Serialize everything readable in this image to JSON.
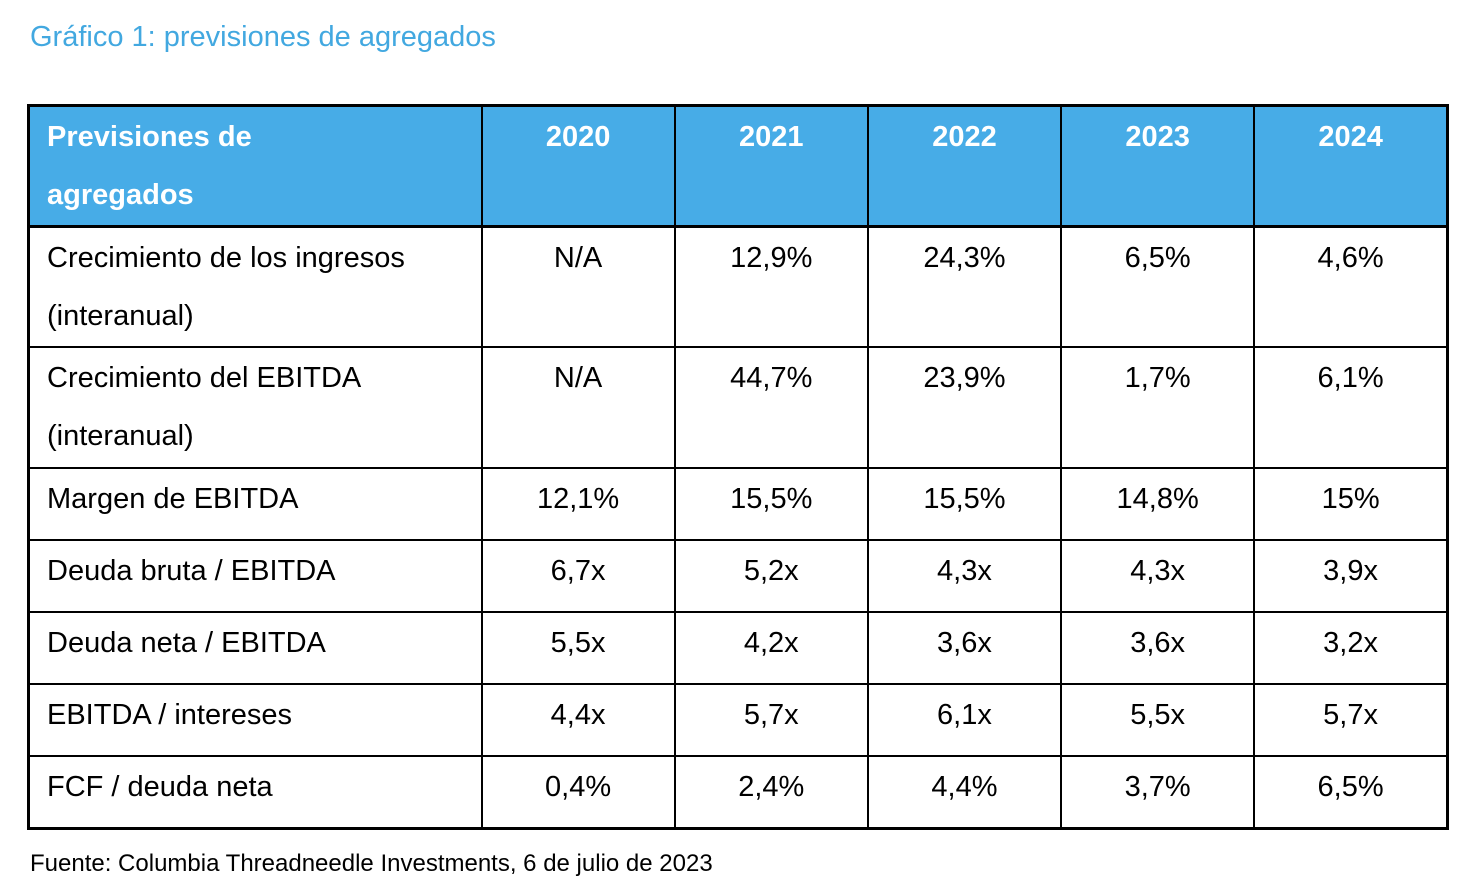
{
  "title": "Gráfico 1: previsiones de agregados",
  "source": "Fuente: Columbia Threadneedle Investments, 6 de julio de 2023",
  "colors": {
    "title_text": "#42A8E0",
    "header_bg": "#47ACE7",
    "header_text": "#FFFFFF",
    "border": "#000000",
    "body_text": "#000000",
    "background": "#FFFFFF"
  },
  "chart_data": {
    "type": "table",
    "title": "Gráfico 1: previsiones de agregados",
    "corner_label": "Previsiones de agregados",
    "columns": [
      "2020",
      "2021",
      "2022",
      "2023",
      "2024"
    ],
    "rows": [
      {
        "label": "Crecimiento de los ingresos (interanual)",
        "values": [
          "N/A",
          "12,9%",
          "24,3%",
          "6,5%",
          "4,6%"
        ]
      },
      {
        "label": "Crecimiento del EBITDA (interanual)",
        "values": [
          "N/A",
          "44,7%",
          "23,9%",
          "1,7%",
          "6,1%"
        ]
      },
      {
        "label": "Margen de EBITDA",
        "values": [
          "12,1%",
          "15,5%",
          "15,5%",
          "14,8%",
          "15%"
        ]
      },
      {
        "label": "Deuda bruta / EBITDA",
        "values": [
          "6,7x",
          "5,2x",
          "4,3x",
          "4,3x",
          "3,9x"
        ]
      },
      {
        "label": "Deuda neta / EBITDA",
        "values": [
          "5,5x",
          "4,2x",
          "3,6x",
          "3,6x",
          "3,2x"
        ]
      },
      {
        "label": "EBITDA / intereses",
        "values": [
          "4,4x",
          "5,7x",
          "6,1x",
          "5,5x",
          "5,7x"
        ]
      },
      {
        "label": "FCF / deuda neta",
        "values": [
          "0,4%",
          "2,4%",
          "4,4%",
          "3,7%",
          "6,5%"
        ]
      }
    ],
    "layout": {
      "grid": true,
      "header_row": true,
      "source_position": "bottom-left"
    }
  }
}
